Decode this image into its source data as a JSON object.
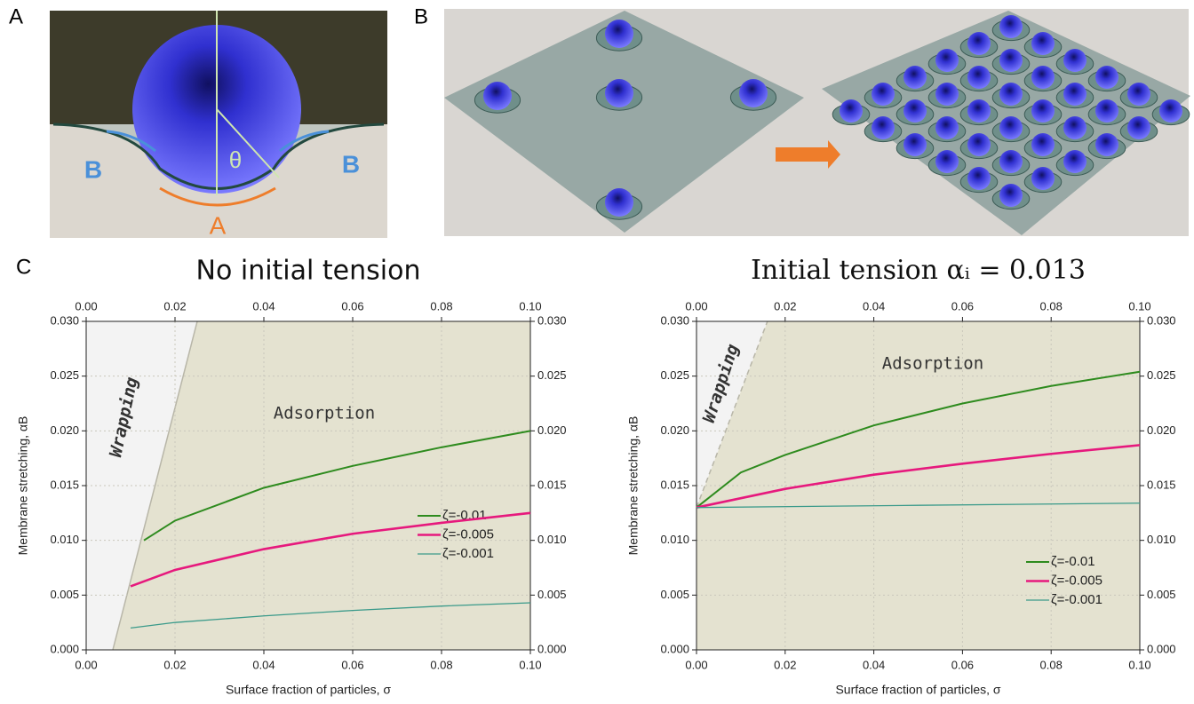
{
  "panel_labels": [
    "A",
    "B",
    "C"
  ],
  "panel_a": {
    "labels": [
      "B",
      "B",
      "A",
      "θ"
    ]
  },
  "chart_data": [
    {
      "type": "line",
      "title": "No initial tension",
      "x_label": "Surface fraction of particles, σ",
      "y_label": "Membrane stretching, αB",
      "xlim": [
        0,
        0.1
      ],
      "ylim": [
        0,
        0.03
      ],
      "xticks": [
        {
          "value": 0,
          "label": "0.00"
        },
        {
          "value": 0.02,
          "label": "0.02"
        },
        {
          "value": 0.04,
          "label": "0.04"
        },
        {
          "value": 0.06,
          "label": "0.06"
        },
        {
          "value": 0.08,
          "label": "0.08"
        },
        {
          "value": 0.1,
          "label": "0.10"
        }
      ],
      "yticks": [
        {
          "value": 0,
          "label": "0.000"
        },
        {
          "value": 0.005,
          "label": "0.005"
        },
        {
          "value": 0.01,
          "label": "0.010"
        },
        {
          "value": 0.015,
          "label": "0.015"
        },
        {
          "value": 0.02,
          "label": "0.020"
        },
        {
          "value": 0.025,
          "label": "0.025"
        },
        {
          "value": 0.03,
          "label": "0.030"
        }
      ],
      "grid": true,
      "annotations": [
        "Wrapping",
        "Adsorption"
      ],
      "boundary": {
        "x": [
          0.006,
          0.025
        ],
        "y": [
          0,
          0.03
        ],
        "dashed": false
      },
      "series": [
        {
          "name": "ζ=-0.01",
          "color": "#2e8b1e",
          "x": [
            0.013,
            0.02,
            0.04,
            0.06,
            0.08,
            0.1
          ],
          "values": [
            0.01,
            0.0118,
            0.0148,
            0.0168,
            0.0185,
            0.02
          ]
        },
        {
          "name": "ζ=-0.005",
          "color": "#e6197d",
          "x": [
            0.01,
            0.02,
            0.04,
            0.06,
            0.08,
            0.1
          ],
          "values": [
            0.0058,
            0.0073,
            0.0092,
            0.0106,
            0.0116,
            0.0125
          ]
        },
        {
          "name": "ζ=-0.001",
          "color": "#3a9a8a",
          "x": [
            0.01,
            0.02,
            0.04,
            0.06,
            0.08,
            0.1
          ],
          "values": [
            0.002,
            0.0025,
            0.0031,
            0.0036,
            0.004,
            0.0043
          ]
        }
      ]
    },
    {
      "type": "line",
      "title": "Initial tension αᵢ = 0.013",
      "x_label": "Surface fraction of particles, σ",
      "y_label": "Membrane stretching, αB",
      "xlim": [
        0,
        0.1
      ],
      "ylim": [
        0,
        0.03
      ],
      "xticks": [
        {
          "value": 0,
          "label": "0.00"
        },
        {
          "value": 0.02,
          "label": "0.02"
        },
        {
          "value": 0.04,
          "label": "0.04"
        },
        {
          "value": 0.06,
          "label": "0.06"
        },
        {
          "value": 0.08,
          "label": "0.08"
        },
        {
          "value": 0.1,
          "label": "0.10"
        }
      ],
      "yticks": [
        {
          "value": 0,
          "label": "0.000"
        },
        {
          "value": 0.005,
          "label": "0.005"
        },
        {
          "value": 0.01,
          "label": "0.010"
        },
        {
          "value": 0.015,
          "label": "0.015"
        },
        {
          "value": 0.02,
          "label": "0.020"
        },
        {
          "value": 0.025,
          "label": "0.025"
        },
        {
          "value": 0.03,
          "label": "0.030"
        }
      ],
      "grid": true,
      "annotations": [
        "Wrapping",
        "Adsorption"
      ],
      "boundary": {
        "x": [
          0,
          0.016
        ],
        "y": [
          0.013,
          0.03
        ],
        "dashed": true
      },
      "series": [
        {
          "name": "ζ=-0.01",
          "color": "#2e8b1e",
          "x": [
            0,
            0.01,
            0.02,
            0.04,
            0.06,
            0.08,
            0.1
          ],
          "values": [
            0.013,
            0.0162,
            0.0178,
            0.0205,
            0.0225,
            0.0241,
            0.0254
          ]
        },
        {
          "name": "ζ=-0.005",
          "color": "#e6197d",
          "x": [
            0,
            0.02,
            0.04,
            0.06,
            0.08,
            0.1
          ],
          "values": [
            0.013,
            0.0147,
            0.016,
            0.017,
            0.0179,
            0.0187
          ]
        },
        {
          "name": "ζ=-0.001",
          "color": "#3a9a8a",
          "x": [
            0,
            0.05,
            0.1
          ],
          "values": [
            0.013,
            0.0132,
            0.0134
          ]
        }
      ]
    }
  ]
}
